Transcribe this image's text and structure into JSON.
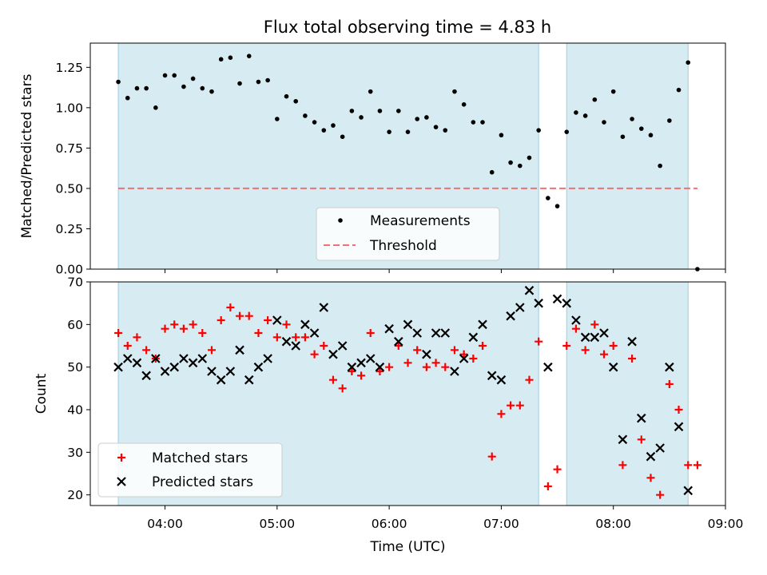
{
  "chart_data": [
    {
      "type": "scatter",
      "title": "Flux total observing time = 4.83 h",
      "xlabel": "",
      "ylabel": "Matched/Predicted stars",
      "xlim": [
        "03:20",
        "09:00"
      ],
      "ylim": [
        0,
        1.4
      ],
      "yticks": [
        "0.00",
        "0.25",
        "0.50",
        "0.75",
        "1.00",
        "1.25"
      ],
      "shaded_intervals": [
        [
          "03:35",
          "07:20"
        ],
        [
          "07:35",
          "08:40"
        ]
      ],
      "legend": {
        "position": "bottom-center"
      },
      "series": [
        {
          "name": "Measurements",
          "marker": "dot",
          "color": "#000000",
          "x": [
            "03:35",
            "03:40",
            "03:45",
            "03:50",
            "03:55",
            "04:00",
            "04:05",
            "04:10",
            "04:15",
            "04:20",
            "04:25",
            "04:30",
            "04:35",
            "04:40",
            "04:45",
            "04:50",
            "04:55",
            "05:00",
            "05:05",
            "05:10",
            "05:15",
            "05:20",
            "05:25",
            "05:30",
            "05:35",
            "05:40",
            "05:45",
            "05:50",
            "05:55",
            "06:00",
            "06:05",
            "06:10",
            "06:15",
            "06:20",
            "06:25",
            "06:30",
            "06:35",
            "06:40",
            "06:45",
            "06:50",
            "06:55",
            "07:00",
            "07:05",
            "07:10",
            "07:15",
            "07:20",
            "07:25",
            "07:30",
            "07:35",
            "07:40",
            "07:45",
            "07:50",
            "07:55",
            "08:00",
            "08:05",
            "08:10",
            "08:15",
            "08:20",
            "08:25",
            "08:30",
            "08:35",
            "08:40",
            "08:45"
          ],
          "y": [
            1.16,
            1.06,
            1.12,
            1.12,
            1.0,
            1.2,
            1.2,
            1.13,
            1.18,
            1.12,
            1.1,
            1.3,
            1.31,
            1.15,
            1.32,
            1.16,
            1.17,
            0.93,
            1.07,
            1.04,
            0.95,
            0.91,
            0.86,
            0.89,
            0.82,
            0.98,
            0.94,
            1.1,
            0.98,
            0.85,
            0.98,
            0.85,
            0.93,
            0.94,
            0.88,
            0.86,
            1.1,
            1.02,
            0.91,
            0.91,
            0.6,
            0.83,
            0.66,
            0.64,
            0.69,
            0.86,
            0.44,
            0.39,
            0.85,
            0.97,
            0.95,
            1.05,
            0.91,
            1.1,
            0.82,
            0.93,
            0.87,
            0.83,
            0.64,
            0.92,
            1.11,
            1.28,
            0.0
          ]
        },
        {
          "name": "Threshold",
          "marker": "dashed-line",
          "color": "#f07070",
          "x": [
            "03:35",
            "08:45"
          ],
          "y": [
            0.5,
            0.5
          ]
        }
      ]
    },
    {
      "type": "scatter",
      "title": "",
      "xlabel": "Time (UTC)",
      "ylabel": "Count",
      "xlim": [
        "03:20",
        "09:00"
      ],
      "ylim": [
        17.5,
        70
      ],
      "xticks": [
        "04:00",
        "05:00",
        "06:00",
        "07:00",
        "08:00",
        "09:00"
      ],
      "yticks": [
        "20",
        "30",
        "40",
        "50",
        "60",
        "70"
      ],
      "shaded_intervals": [
        [
          "03:35",
          "07:20"
        ],
        [
          "07:35",
          "08:40"
        ]
      ],
      "legend": {
        "position": "bottom-left"
      },
      "series": [
        {
          "name": "Matched stars",
          "marker": "plus",
          "color": "#ff0000",
          "x": [
            "03:35",
            "03:40",
            "03:45",
            "03:50",
            "03:55",
            "04:00",
            "04:05",
            "04:10",
            "04:15",
            "04:20",
            "04:25",
            "04:30",
            "04:35",
            "04:40",
            "04:45",
            "04:50",
            "04:55",
            "05:00",
            "05:05",
            "05:10",
            "05:15",
            "05:20",
            "05:25",
            "05:30",
            "05:35",
            "05:40",
            "05:45",
            "05:50",
            "05:55",
            "06:00",
            "06:05",
            "06:10",
            "06:15",
            "06:20",
            "06:25",
            "06:30",
            "06:35",
            "06:40",
            "06:45",
            "06:50",
            "06:55",
            "07:00",
            "07:05",
            "07:10",
            "07:15",
            "07:20",
            "07:25",
            "07:30",
            "07:35",
            "07:40",
            "07:45",
            "07:50",
            "07:55",
            "08:00",
            "08:05",
            "08:10",
            "08:15",
            "08:20",
            "08:25",
            "08:30",
            "08:35",
            "08:40",
            "08:45"
          ],
          "y": [
            58,
            55,
            57,
            54,
            52,
            59,
            60,
            59,
            60,
            58,
            54,
            61,
            64,
            62,
            62,
            58,
            61,
            57,
            60,
            57,
            57,
            53,
            55,
            47,
            45,
            49,
            48,
            58,
            49,
            50,
            55,
            51,
            54,
            50,
            51,
            50,
            54,
            53,
            52,
            55,
            29,
            39,
            41,
            41,
            47,
            56,
            22,
            26,
            55,
            59,
            54,
            60,
            53,
            55,
            27,
            52,
            33,
            24,
            20,
            46,
            40,
            27,
            27
          ]
        },
        {
          "name": "Predicted stars",
          "marker": "x",
          "color": "#000000",
          "x": [
            "03:35",
            "03:40",
            "03:45",
            "03:50",
            "03:55",
            "04:00",
            "04:05",
            "04:10",
            "04:15",
            "04:20",
            "04:25",
            "04:30",
            "04:35",
            "04:40",
            "04:45",
            "04:50",
            "04:55",
            "05:00",
            "05:05",
            "05:10",
            "05:15",
            "05:20",
            "05:25",
            "05:30",
            "05:35",
            "05:40",
            "05:45",
            "05:50",
            "05:55",
            "06:00",
            "06:05",
            "06:10",
            "06:15",
            "06:20",
            "06:25",
            "06:30",
            "06:35",
            "06:40",
            "06:45",
            "06:50",
            "06:55",
            "07:00",
            "07:05",
            "07:10",
            "07:15",
            "07:20",
            "07:25",
            "07:30",
            "07:35",
            "07:40",
            "07:45",
            "07:50",
            "07:55",
            "08:00",
            "08:05",
            "08:10",
            "08:15",
            "08:20",
            "08:25",
            "08:30",
            "08:35",
            "08:40"
          ],
          "y": [
            50,
            52,
            51,
            48,
            52,
            49,
            50,
            52,
            51,
            52,
            49,
            47,
            49,
            54,
            47,
            50,
            52,
            61,
            56,
            55,
            60,
            58,
            64,
            53,
            55,
            50,
            51,
            52,
            50,
            59,
            56,
            60,
            58,
            53,
            58,
            58,
            49,
            52,
            57,
            60,
            48,
            47,
            62,
            64,
            68,
            65,
            50,
            66,
            65,
            61,
            57,
            57,
            58,
            50,
            33,
            56,
            38,
            29,
            31,
            50,
            36,
            21
          ]
        }
      ]
    }
  ]
}
